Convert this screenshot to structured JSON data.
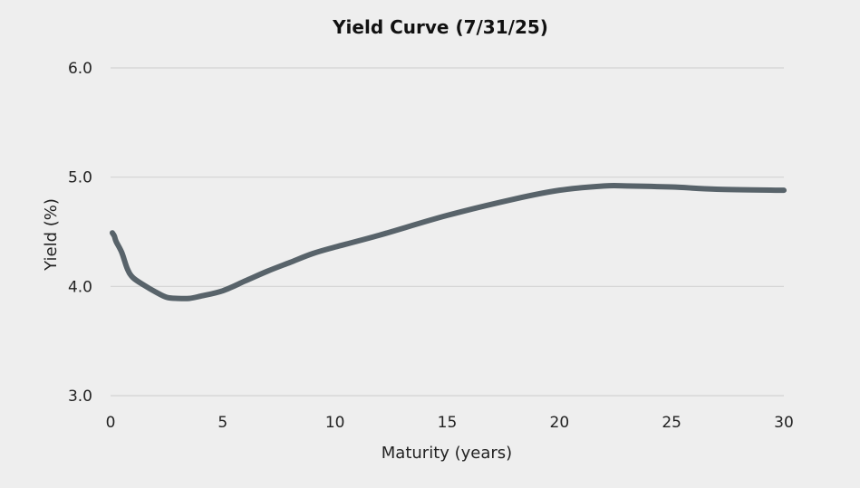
{
  "chart_data": {
    "type": "line",
    "title": "Yield Curve (7/31/25)",
    "xlabel": "Maturity (years)",
    "ylabel": "Yield (%)",
    "xlim": [
      0,
      30
    ],
    "ylim": [
      3.0,
      6.0
    ],
    "x_ticks": [
      0,
      5,
      10,
      15,
      20,
      25,
      30
    ],
    "x_tick_labels": [
      "0",
      "5",
      "10",
      "15",
      "20",
      "25",
      "30"
    ],
    "y_ticks": [
      3.0,
      4.0,
      5.0,
      6.0
    ],
    "y_tick_labels": [
      "3.0",
      "4.0",
      "5.0",
      "6.0"
    ],
    "grid": "horizontal",
    "legend": "none",
    "series": [
      {
        "color": "#58636a",
        "x": [
          0.08,
          0.17,
          0.25,
          0.5,
          0.75,
          1,
          1.5,
          2,
          2.5,
          3,
          3.5,
          4,
          5,
          6,
          7,
          8,
          9,
          10,
          12,
          15,
          18,
          20,
          22,
          23,
          25,
          27,
          30
        ],
        "y": [
          4.49,
          4.46,
          4.41,
          4.31,
          4.16,
          4.08,
          4.01,
          3.95,
          3.9,
          3.89,
          3.89,
          3.91,
          3.96,
          4.05,
          4.14,
          4.22,
          4.3,
          4.36,
          4.47,
          4.65,
          4.8,
          4.88,
          4.92,
          4.92,
          4.91,
          4.89,
          4.88
        ]
      }
    ]
  }
}
